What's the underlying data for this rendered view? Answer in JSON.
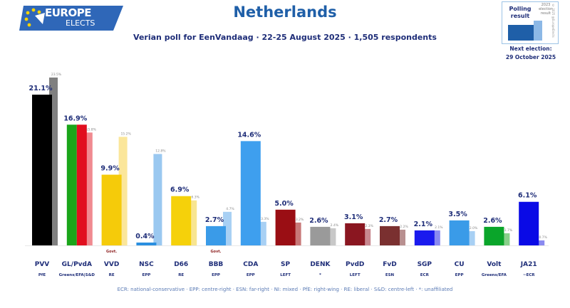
{
  "header": {
    "logo_line1": "EUROPE",
    "logo_line2": "ELECTS",
    "title": "Netherlands",
    "subtitle": "Verian poll for EenVandaag · 22-25 August 2025 · 1,505 respondents"
  },
  "legend": {
    "polling_result": "Polling result",
    "previous_result": "2023 election result",
    "credit": "© 2025 @EuropeElects",
    "next_election_label": "Next election:",
    "next_election_date": "29 October 2025"
  },
  "colors": {
    "title": "#1f5fa8",
    "text": "#1e2d78",
    "footnote": "#5b7bb5"
  },
  "footnote": "ECR: national-conservative · EPP: centre-right · ESN: far-right · NI: mixed · PfE: right-wing · RE: liberal · S&D: centre-left · *: unaffiliated",
  "chart_data": {
    "type": "bar",
    "title": "Netherlands",
    "ylabel": "",
    "ylim": [
      0,
      25
    ],
    "categories": [
      "PVV",
      "GL/PvdA",
      "VVD",
      "NSC",
      "D66",
      "BBB",
      "CDA",
      "SP",
      "DENK",
      "PvdD",
      "FvD",
      "SGP",
      "CU",
      "Volt",
      "JA21"
    ],
    "groups": [
      "PfE",
      "Greens/EFA|S&D",
      "RE",
      "EPP",
      "RE",
      "EPP",
      "EPP",
      "LEFT",
      "*",
      "LEFT",
      "ESN",
      "ECR",
      "EPP",
      "Greens/EFA",
      "~ECR"
    ],
    "gov_marker": [
      "",
      "",
      "Govt.",
      "",
      "",
      "Govt.",
      "",
      "",
      "",
      "",
      "",
      "",
      "",
      "",
      ""
    ],
    "series": [
      {
        "name": "Polling result",
        "values": [
          21.1,
          16.9,
          9.9,
          0.4,
          6.9,
          2.7,
          14.6,
          5.0,
          2.6,
          3.1,
          2.7,
          2.1,
          3.5,
          2.6,
          6.1
        ],
        "labels": [
          "21.1%",
          "16.9%",
          "9.9%",
          "0.4%",
          "6.9%",
          "2.7%",
          "14.6%",
          "5.0%",
          "2.6%",
          "3.1%",
          "2.7%",
          "2.1%",
          "3.5%",
          "2.6%",
          "6.1%"
        ]
      },
      {
        "name": "2023 election result",
        "values": [
          23.5,
          15.8,
          15.2,
          12.8,
          6.3,
          4.7,
          3.3,
          3.2,
          2.4,
          2.3,
          2.2,
          2.1,
          2.0,
          1.7,
          0.7
        ],
        "labels": [
          "23.5%",
          "15.8%",
          "15.2%",
          "12.8%",
          "6.3%",
          "4.7%",
          "3.3%",
          "3.2%",
          "2.4%",
          "2.3%",
          "2.2%",
          "2.1%",
          "2.0%",
          "1.7%",
          "0.7%"
        ]
      }
    ],
    "bar_colors": [
      [
        "#000000"
      ],
      [
        "#1aa51a",
        "#e10e1e"
      ],
      [
        "#f5cb0a"
      ],
      [
        "#2a8fe0"
      ],
      [
        "#f5d10a"
      ],
      [
        "#3a9be8"
      ],
      [
        "#3e9fee"
      ],
      [
        "#9a0e14"
      ],
      [
        "#9a9a9a"
      ],
      [
        "#8a1620"
      ],
      [
        "#7a3030"
      ],
      [
        "#1a1aee"
      ],
      [
        "#3a9be8"
      ],
      [
        "#0aa52a"
      ],
      [
        "#0a0ae6"
      ]
    ],
    "prev_colors": [
      "#808080",
      "#f08a90",
      "#fbe69a",
      "#9ac8f0",
      "#f8e590",
      "#a8d0f4",
      "#a8d0f4",
      "#c87878",
      "#c8c8c8",
      "#c88890",
      "#b89090",
      "#8a8af0",
      "#a8d0f4",
      "#88d08a",
      "#8a8af0"
    ]
  }
}
